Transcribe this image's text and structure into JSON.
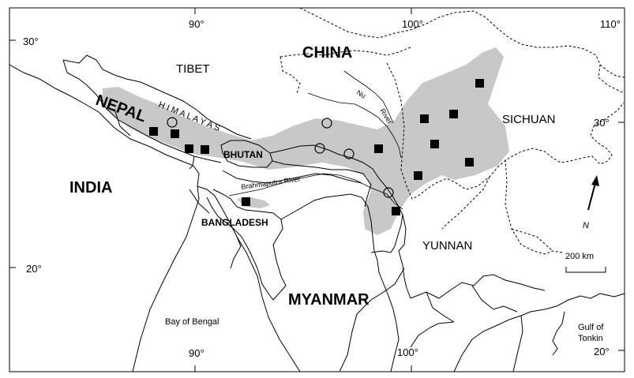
{
  "map": {
    "labels": {
      "tibet": "TIBET",
      "china": "CHINA",
      "nepal": "NEPAL",
      "himalayas": "H I M A L A Y A S",
      "bhutan": "BHUTAN",
      "india": "INDIA",
      "bangladesh": "BANGLADESH",
      "myanmar": "MYANMAR",
      "yunnan": "YUNNAN",
      "sichuan": "SICHUAN",
      "bay_of_bengal": "Bay of Bengal",
      "gulf_of_tonkin_1": "Gulf of",
      "gulf_of_tonkin_2": "Tonkin",
      "brahmaputra": "Brahmaputra River",
      "nu_river_1": "Nu",
      "nu_river_2": "River"
    },
    "ticks": {
      "lon_90_top": "90°",
      "lon_100_top": "100°",
      "lon_110_top": "110°",
      "lon_90_bottom": "90°",
      "lon_100_bottom": "100°",
      "lat_30_left": "30°",
      "lat_20_left": "20°",
      "lat_30_right": "30°",
      "lat_20_right": "20°"
    },
    "north_label": "N",
    "scale_label": "200 km",
    "colors": {
      "range_fill": "#c8c8c8",
      "marker": "#000000",
      "background": "#ffffff"
    }
  }
}
